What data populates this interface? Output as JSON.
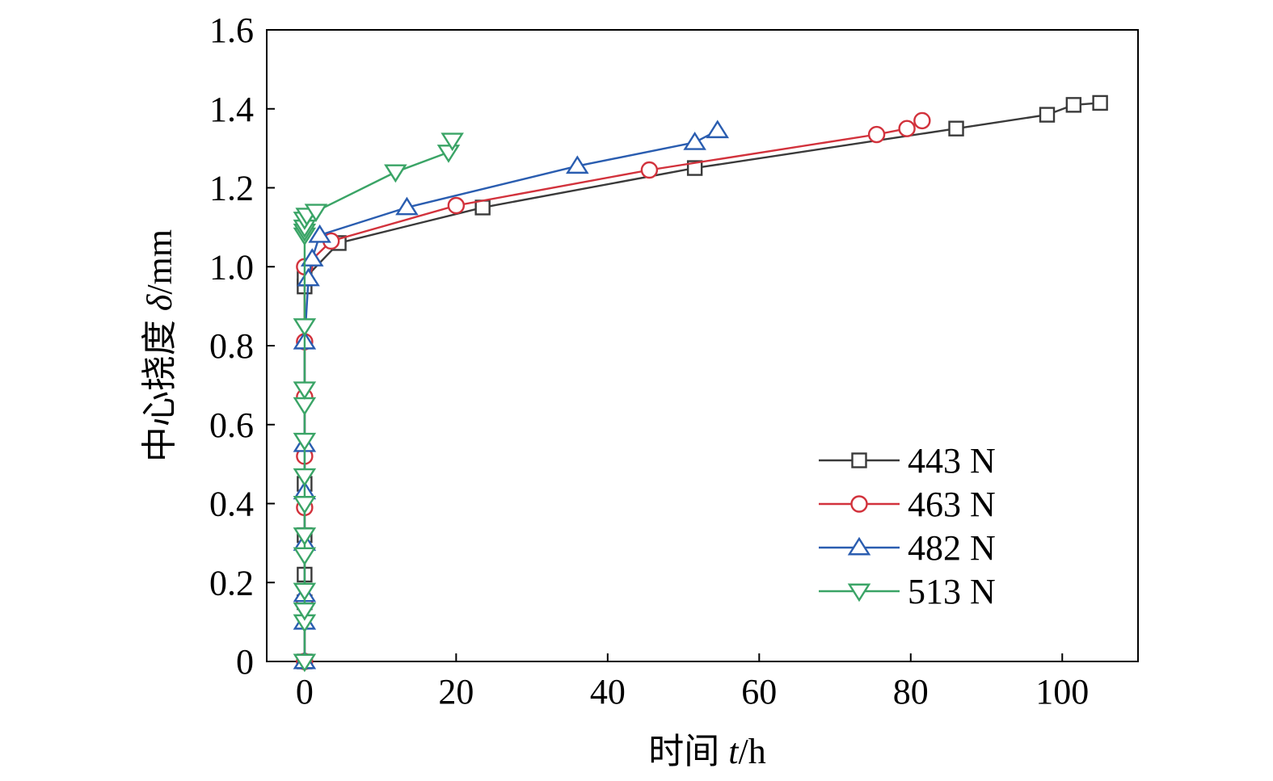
{
  "chart_data": {
    "type": "line",
    "xlabel": {
      "prefix": "时间 ",
      "var": "t",
      "unit": "/h"
    },
    "ylabel": {
      "prefix": "中心挠度 ",
      "var": "δ",
      "unit": "/mm"
    },
    "xlim": [
      -5,
      110
    ],
    "ylim": [
      0,
      1.6
    ],
    "xticks": [
      0,
      20,
      40,
      60,
      80,
      100
    ],
    "yticks": [
      0,
      0.2,
      0.4,
      0.6,
      0.8,
      1.0,
      1.2,
      1.4,
      1.6
    ],
    "ytick_labels": [
      "0",
      "0.2",
      "0.4",
      "0.6",
      "0.8",
      "1.0",
      "1.2",
      "1.4",
      "1.6"
    ],
    "legend_position": "lower-right",
    "series": [
      {
        "name": "443 N",
        "color": "#3a3a3a",
        "marker": "square",
        "x": [
          0,
          0,
          0,
          0,
          0,
          0,
          0,
          4.5,
          23.5,
          51.5,
          86,
          98,
          101.5,
          105
        ],
        "y": [
          0,
          0.15,
          0.22,
          0.32,
          0.45,
          0.95,
          0.97,
          1.06,
          1.15,
          1.25,
          1.35,
          1.385,
          1.41,
          1.415
        ]
      },
      {
        "name": "463 N",
        "color": "#d2323c",
        "marker": "circle",
        "x": [
          0,
          0,
          0,
          0,
          0,
          0,
          0,
          3.5,
          20,
          45.5,
          75.5,
          79.5,
          81.5
        ],
        "y": [
          0,
          0.15,
          0.39,
          0.52,
          0.67,
          0.81,
          1.0,
          1.065,
          1.155,
          1.245,
          1.335,
          1.35,
          1.37
        ]
      },
      {
        "name": "482 N",
        "color": "#2a5db0",
        "marker": "triangle-up",
        "x": [
          0,
          0,
          0,
          0,
          0,
          0,
          0,
          0.5,
          1,
          2,
          13.5,
          36,
          51.5,
          54.5
        ],
        "y": [
          0,
          0.1,
          0.17,
          0.3,
          0.43,
          0.55,
          0.81,
          0.97,
          1.02,
          1.08,
          1.15,
          1.255,
          1.315,
          1.345
        ]
      },
      {
        "name": "513 N",
        "color": "#3aa466",
        "marker": "triangle-down",
        "x": [
          0,
          0,
          0,
          0,
          0,
          0,
          0,
          0,
          0,
          0,
          0,
          0,
          0,
          0,
          0,
          0,
          0.3,
          1.5,
          12,
          19,
          19.5
        ],
        "y": [
          0,
          0.1,
          0.13,
          0.18,
          0.27,
          0.32,
          0.4,
          0.47,
          0.56,
          0.65,
          0.69,
          0.85,
          1.08,
          1.09,
          1.1,
          1.12,
          1.13,
          1.14,
          1.24,
          1.29,
          1.32
        ]
      }
    ]
  }
}
